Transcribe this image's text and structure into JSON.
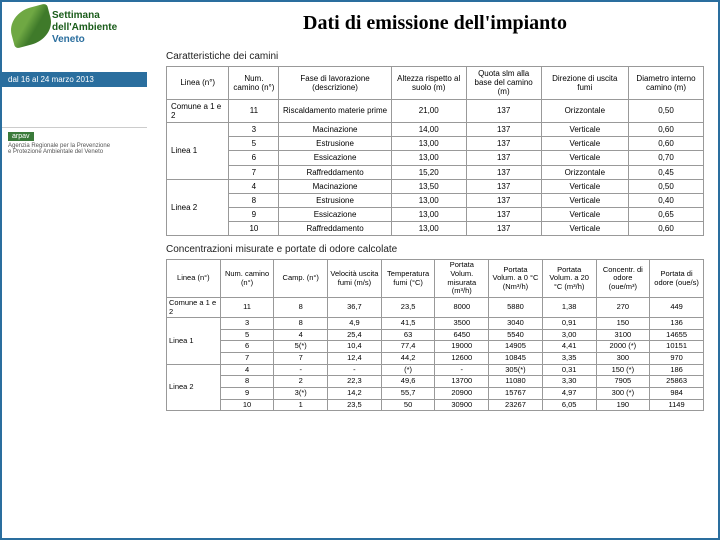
{
  "title": "Dati di emissione dell'impianto",
  "colors": {
    "frame": "#2a6e9e",
    "leaf": "#6fa843",
    "text": "#222222"
  },
  "sidebar": {
    "logo": {
      "line1": "Settimana",
      "line2": "dell'Ambiente",
      "line3": "Veneto"
    },
    "date_bar": "dal 16 al 24 marzo 2013",
    "arpav": {
      "logo": "arpav",
      "line1": "Agenzia Regionale per la Prevenzione",
      "line2": "e Protezione Ambientale del Veneto"
    }
  },
  "table1": {
    "caption": "Caratteristiche dei camini",
    "columns": [
      "Linea (n°)",
      "Num. camino (n°)",
      "Fase di lavorazione (descrizione)",
      "Altezza rispetto al suolo (m)",
      "Quota slm alla base del camino (m)",
      "Direzione di uscita fumi",
      "Diametro interno camino (m)"
    ],
    "groups": [
      {
        "label": "Comune a 1 e 2",
        "rows": [
          [
            "11",
            "Riscaldamento materie prime",
            "21,00",
            "137",
            "Orizzontale",
            "0,50"
          ]
        ]
      },
      {
        "label": "Linea 1",
        "rows": [
          [
            "3",
            "Macinazione",
            "14,00",
            "137",
            "Verticale",
            "0,60"
          ],
          [
            "5",
            "Estrusione",
            "13,00",
            "137",
            "Verticale",
            "0,60"
          ],
          [
            "6",
            "Essicazione",
            "13,00",
            "137",
            "Verticale",
            "0,70"
          ],
          [
            "7",
            "Raffreddamento",
            "15,20",
            "137",
            "Orizzontale",
            "0,45"
          ]
        ]
      },
      {
        "label": "Linea 2",
        "rows": [
          [
            "4",
            "Macinazione",
            "13,50",
            "137",
            "Verticale",
            "0,50"
          ],
          [
            "8",
            "Estrusione",
            "13,00",
            "137",
            "Verticale",
            "0,40"
          ],
          [
            "9",
            "Essicazione",
            "13,00",
            "137",
            "Verticale",
            "0,65"
          ],
          [
            "10",
            "Raffreddamento",
            "13,00",
            "137",
            "Verticale",
            "0,60"
          ]
        ]
      }
    ]
  },
  "table2": {
    "caption": "Concentrazioni misurate e portate di odore calcolate",
    "columns": [
      "Linea (n°)",
      "Num. camino (n°)",
      "Camp. (n°)",
      "Velocità uscita fumi (m/s)",
      "Temperatura fumi (°C)",
      "Portata Volum. misurata (m³/h)",
      "Portata Volum. a 0 °C (Nm³/h)",
      "Portata Volum. a 20 °C (m³/h)",
      "Concentr. di odore (oue/m³)",
      "Portata di odore (oue/s)"
    ],
    "groups": [
      {
        "label": "Comune a 1 e 2",
        "rows": [
          [
            "11",
            "8",
            "36,7",
            "23,5",
            "8000",
            "5880",
            "1,38",
            "270",
            "449"
          ]
        ]
      },
      {
        "label": "Linea 1",
        "rows": [
          [
            "3",
            "8",
            "4,9",
            "41,5",
            "3500",
            "3040",
            "0,91",
            "150",
            "136"
          ],
          [
            "5",
            "4",
            "25,4",
            "63",
            "6450",
            "5540",
            "3,00",
            "3100",
            "14655"
          ],
          [
            "6",
            "5(*)",
            "10,4",
            "77,4",
            "19000",
            "14905",
            "4,41",
            "2000 (*)",
            "10151"
          ],
          [
            "7",
            "7",
            "12,4",
            "44,2",
            "12600",
            "10845",
            "3,35",
            "300",
            "970"
          ]
        ]
      },
      {
        "label": "Linea 2",
        "rows": [
          [
            "4",
            "-",
            "-",
            "(*)",
            "-",
            "305(*)",
            "0,31",
            "150 (*)",
            "186"
          ],
          [
            "8",
            "2",
            "22,3",
            "49,6",
            "13700",
            "11080",
            "3,30",
            "7905",
            "25863"
          ],
          [
            "9",
            "3(*)",
            "14,2",
            "55,7",
            "20900",
            "15767",
            "4,97",
            "300 (*)",
            "984"
          ],
          [
            "10",
            "1",
            "23,5",
            "50",
            "30900",
            "23267",
            "6,05",
            "190",
            "1149"
          ]
        ]
      }
    ]
  }
}
